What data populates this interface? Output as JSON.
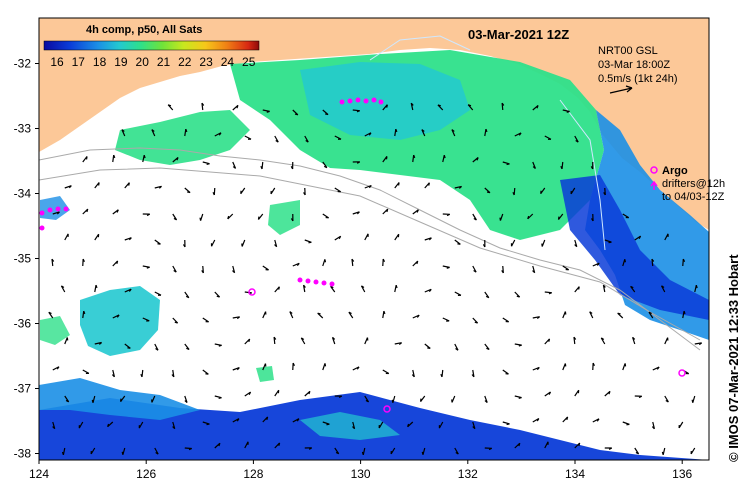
{
  "map": {
    "date_title": "03-Mar-2021 12Z",
    "colorbar": {
      "title": "4h comp, p50, All Sats",
      "ticks": [
        "16",
        "17",
        "18",
        "19",
        "20",
        "21",
        "22",
        "23",
        "24",
        "25"
      ],
      "stops": [
        "#0a0aa0",
        "#0b3cd8",
        "#1b8fe6",
        "#23c9d0",
        "#2ee08a",
        "#6fe33a",
        "#c8e81e",
        "#f6c81a",
        "#f08014",
        "#d82812",
        "#8c0a0a"
      ]
    },
    "current_key": {
      "model": "NRT00 GSL",
      "time": "03-Mar 18:00Z",
      "scale": "0.5m/s (1kt 24h)"
    },
    "argo_legend": {
      "title": "Argo",
      "line1": "drifters@12h",
      "line2": "to 04/03-12Z"
    },
    "credit": "© IMOS 07-Mar-2021 12:33 Hobart",
    "axes": {
      "lon_ticks": [
        124,
        126,
        128,
        130,
        132,
        134,
        136
      ],
      "lat_ticks": [
        -32,
        -33,
        -34,
        -35,
        -36,
        -37,
        -38
      ]
    },
    "colors": {
      "land": "#fcc898",
      "sst_cold": "#0b3cd8",
      "sst_mid": "#2ee08a",
      "argo": "#ff00ff"
    }
  }
}
